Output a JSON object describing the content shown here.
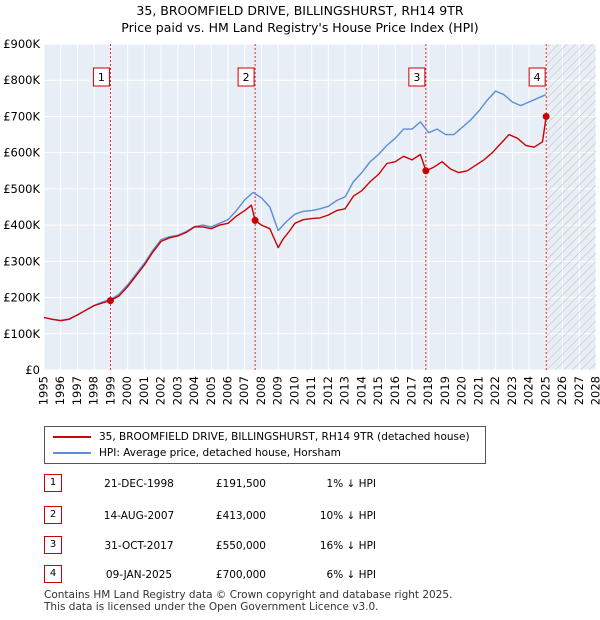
{
  "title_line1": "35, BROOMFIELD DRIVE, BILLINGSHURST, RH14 9TR",
  "title_line2": "Price paid vs. HM Land Registry's House Price Index (HPI)",
  "chart_data": {
    "type": "line",
    "title": "35, BROOMFIELD DRIVE, BILLINGSHURST, RH14 9TR — Price paid vs. HM Land Registry's House Price Index (HPI)",
    "xlabel": "",
    "ylabel": "",
    "xlim": [
      1995,
      2028
    ],
    "ylim": [
      0,
      900000
    ],
    "x_ticks": [
      1995,
      1996,
      1997,
      1998,
      1999,
      2000,
      2001,
      2002,
      2003,
      2004,
      2005,
      2006,
      2007,
      2008,
      2009,
      2010,
      2011,
      2012,
      2013,
      2014,
      2015,
      2016,
      2017,
      2018,
      2019,
      2020,
      2021,
      2022,
      2023,
      2024,
      2025,
      2026,
      2027,
      2028
    ],
    "y_ticks": [
      0,
      100000,
      200000,
      300000,
      400000,
      500000,
      600000,
      700000,
      800000,
      900000
    ],
    "y_tick_labels": [
      "£0",
      "£100K",
      "£200K",
      "£300K",
      "£400K",
      "£500K",
      "£600K",
      "£700K",
      "£800K",
      "£900K"
    ],
    "grid": true,
    "forecast_hatch_from": 2025.0,
    "series": [
      {
        "name": "35, BROOMFIELD DRIVE, BILLINGSHURST, RH14 9TR (detached house)",
        "color": "#cc0000",
        "x": [
          1995.0,
          1995.5,
          1996.0,
          1996.5,
          1997.0,
          1997.5,
          1998.0,
          1998.5,
          1998.97,
          1999.5,
          2000.0,
          2000.5,
          2001.0,
          2001.5,
          2002.0,
          2002.5,
          2003.0,
          2003.5,
          2004.0,
          2004.5,
          2005.0,
          2005.5,
          2006.0,
          2006.5,
          2007.0,
          2007.4,
          2007.62,
          2008.0,
          2008.5,
          2009.0,
          2009.3,
          2009.7,
          2010.0,
          2010.5,
          2011.0,
          2011.5,
          2012.0,
          2012.5,
          2013.0,
          2013.5,
          2014.0,
          2014.5,
          2015.0,
          2015.5,
          2016.0,
          2016.5,
          2017.0,
          2017.5,
          2017.83,
          2018.3,
          2018.8,
          2019.3,
          2019.8,
          2020.3,
          2020.8,
          2021.3,
          2021.8,
          2022.3,
          2022.8,
          2023.3,
          2023.8,
          2024.3,
          2024.8,
          2025.02
        ],
        "values": [
          145000,
          140000,
          136000,
          140000,
          152000,
          165000,
          178000,
          185000,
          191500,
          205000,
          230000,
          260000,
          290000,
          325000,
          355000,
          365000,
          370000,
          380000,
          395000,
          395000,
          390000,
          400000,
          405000,
          425000,
          440000,
          455000,
          413000,
          400000,
          390000,
          338000,
          362000,
          385000,
          405000,
          415000,
          418000,
          420000,
          428000,
          440000,
          445000,
          480000,
          495000,
          520000,
          540000,
          570000,
          575000,
          590000,
          580000,
          595000,
          550000,
          560000,
          575000,
          555000,
          545000,
          550000,
          565000,
          580000,
          600000,
          625000,
          650000,
          640000,
          620000,
          615000,
          630000,
          700000
        ]
      },
      {
        "name": "HPI: Average price, detached house, Horsham",
        "color": "#5b8dd9",
        "x": [
          1995.0,
          1995.5,
          1996.0,
          1996.5,
          1997.0,
          1997.5,
          1998.0,
          1998.5,
          1999.0,
          1999.5,
          2000.0,
          2000.5,
          2001.0,
          2001.5,
          2002.0,
          2002.5,
          2003.0,
          2003.5,
          2004.0,
          2004.5,
          2005.0,
          2005.5,
          2006.0,
          2006.5,
          2007.0,
          2007.5,
          2008.0,
          2008.5,
          2009.0,
          2009.5,
          2010.0,
          2010.5,
          2011.0,
          2011.5,
          2012.0,
          2012.5,
          2013.0,
          2013.5,
          2014.0,
          2014.5,
          2015.0,
          2015.5,
          2016.0,
          2016.5,
          2017.0,
          2017.5,
          2018.0,
          2018.5,
          2019.0,
          2019.5,
          2020.0,
          2020.5,
          2021.0,
          2021.5,
          2022.0,
          2022.5,
          2023.0,
          2023.5,
          2024.0,
          2024.5,
          2025.0
        ],
        "values": [
          145000,
          140000,
          137000,
          141000,
          152000,
          165000,
          178000,
          188000,
          195000,
          210000,
          235000,
          265000,
          295000,
          330000,
          360000,
          368000,
          372000,
          382000,
          396000,
          400000,
          395000,
          405000,
          415000,
          440000,
          470000,
          490000,
          475000,
          450000,
          385000,
          410000,
          430000,
          438000,
          440000,
          445000,
          452000,
          468000,
          478000,
          520000,
          545000,
          575000,
          595000,
          620000,
          640000,
          665000,
          665000,
          685000,
          655000,
          665000,
          650000,
          650000,
          670000,
          690000,
          715000,
          745000,
          770000,
          760000,
          740000,
          730000,
          740000,
          750000,
          760000
        ]
      }
    ],
    "markers": [
      {
        "label": "1",
        "x": 1998.97,
        "value": 191500
      },
      {
        "label": "2",
        "x": 2007.62,
        "value": 413000
      },
      {
        "label": "3",
        "x": 2017.83,
        "value": 550000
      },
      {
        "label": "4",
        "x": 2025.02,
        "value": 700000
      }
    ]
  },
  "legend": {
    "property_label": "35, BROOMFIELD DRIVE, BILLINGSHURST, RH14 9TR (detached house)",
    "hpi_label": "HPI: Average price, detached house, Horsham",
    "property_color": "#cc0000",
    "hpi_color": "#5b8dd9"
  },
  "transactions": [
    {
      "num": "1",
      "date": "21-DEC-1998",
      "price": "£191,500",
      "hpi": "1% ↓ HPI"
    },
    {
      "num": "2",
      "date": "14-AUG-2007",
      "price": "£413,000",
      "hpi": "10% ↓ HPI"
    },
    {
      "num": "3",
      "date": "31-OCT-2017",
      "price": "£550,000",
      "hpi": "16% ↓ HPI"
    },
    {
      "num": "4",
      "date": "09-JAN-2025",
      "price": "£700,000",
      "hpi": "6% ↓ HPI"
    }
  ],
  "footer_line1": "Contains HM Land Registry data © Crown copyright and database right 2025.",
  "footer_line2": "This data is licensed under the Open Government Licence v3.0."
}
